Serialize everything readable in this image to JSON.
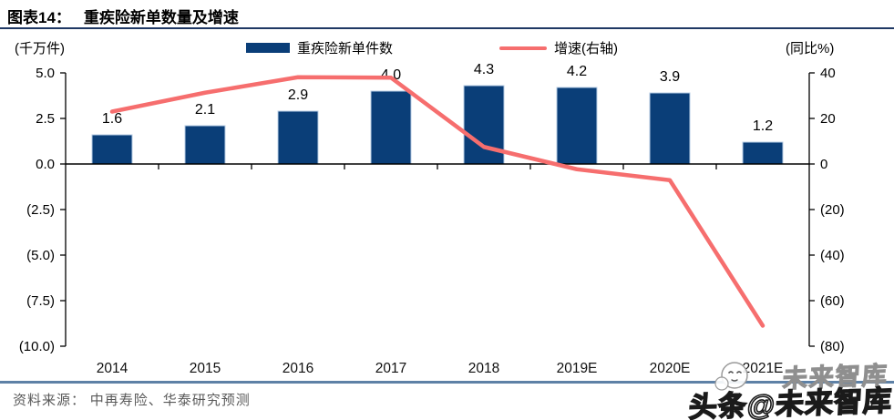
{
  "header": {
    "chart_no": "图表14：",
    "title": "重疾险新单数量及增速"
  },
  "legend": [
    {
      "label": "重疾险新单件数",
      "type": "bar",
      "color": "#0a3e78"
    },
    {
      "label": "增速(右轴)",
      "type": "line",
      "color": "#f66e6e"
    }
  ],
  "chart_data": {
    "type": "bar+line combo",
    "categories": [
      "2014",
      "2015",
      "2016",
      "2017",
      "2018",
      "2019E",
      "2020E",
      "2021E"
    ],
    "series": [
      {
        "name": "重疾险新单件数",
        "type": "bar",
        "axis": "left",
        "values": [
          1.6,
          2.1,
          2.9,
          4.0,
          4.3,
          4.2,
          3.9,
          1.2
        ],
        "labels": [
          "1.6",
          "2.1",
          "2.9",
          "4.0",
          "4.3",
          "4.2",
          "3.9",
          "1.2"
        ],
        "color": "#0a3e78"
      },
      {
        "name": "增速(右轴)",
        "type": "line",
        "axis": "right",
        "values": [
          23,
          31.3,
          38.1,
          37.9,
          7.5,
          -2.3,
          -7.1,
          -71
        ],
        "color": "#f66e6e"
      }
    ],
    "left_axis": {
      "unit": "(千万件)",
      "ticks": [
        "5.0",
        "2.5",
        "0.0",
        "(2.5)",
        "(5.0)",
        "(7.5)",
        "(10.0)"
      ],
      "tick_values": [
        5,
        2.5,
        0,
        -2.5,
        -5,
        -7.5,
        -10
      ],
      "range": [
        -10,
        5
      ]
    },
    "right_axis": {
      "unit": "(同比%)",
      "ticks": [
        "40",
        "20",
        "0",
        "(20)",
        "(40)",
        "(60)",
        "(80)"
      ],
      "tick_values": [
        40,
        20,
        0,
        -20,
        -40,
        -60,
        -80
      ],
      "range": [
        -80,
        40
      ]
    },
    "grid": false,
    "legend_position": "top"
  },
  "footer": {
    "source": "资料来源： 中再寿险、华泰研究预测"
  },
  "watermark": {
    "ghost": "未来智库",
    "main": "头条@未来智库"
  },
  "colors": {
    "bar": "#0a3e78",
    "bar_border": "#b7cce4",
    "line": "#f66e6e",
    "axis": "#000000",
    "title_rule": "#1f3864",
    "bottom_rule": "#5e81a6",
    "source_text": "#595959"
  }
}
